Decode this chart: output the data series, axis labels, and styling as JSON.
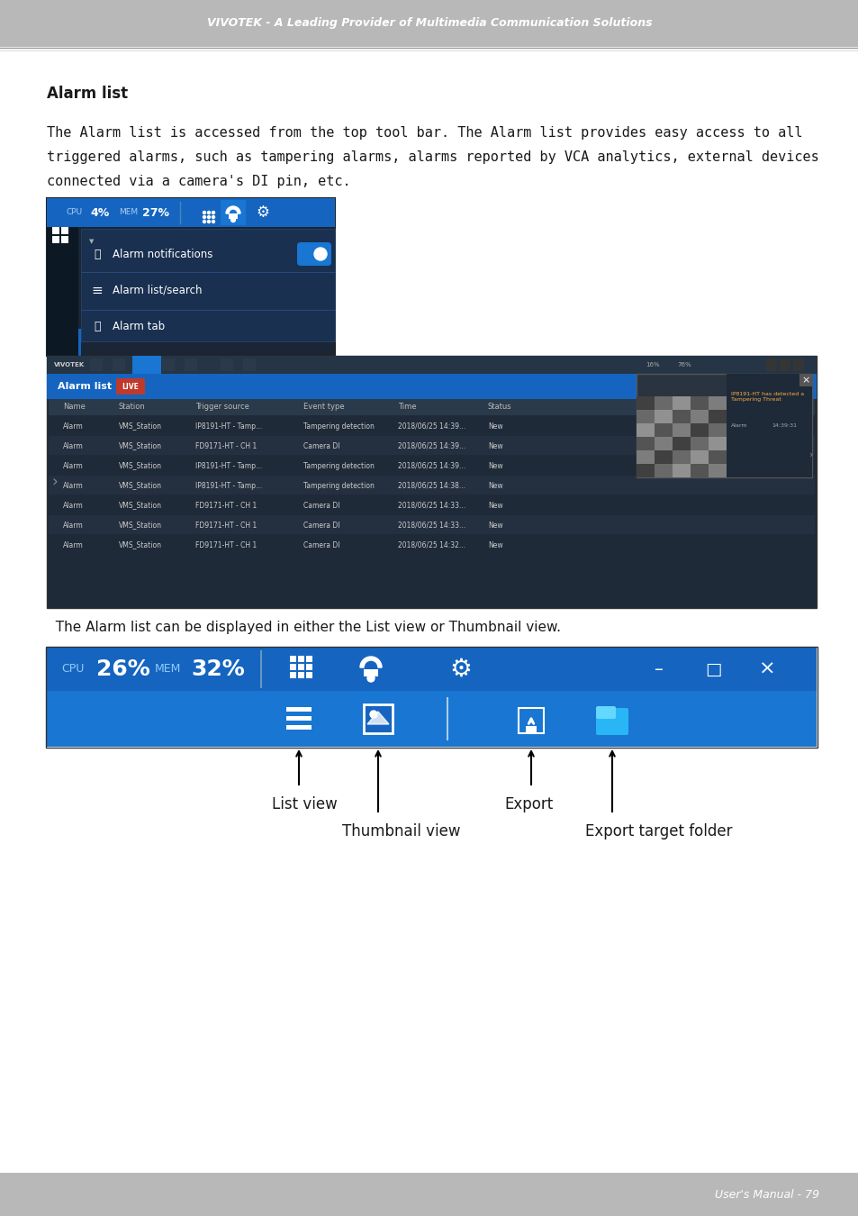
{
  "page_bg": "#ffffff",
  "header_bg": "#b8b8b8",
  "header_text": "VIVOTEK - A Leading Provider of Multimedia Communication Solutions",
  "header_text_color": "#ffffff",
  "footer_bg": "#b8b8b8",
  "footer_text": "User's Manual - 79",
  "footer_text_color": "#ffffff",
  "section_title": "Alarm list",
  "body_line1": "The Alarm list is accessed from the top tool bar. The Alarm list provides easy access to all",
  "body_line2": "triggered alarms, such as tampering alarms, alarms reported by VCA analytics, external devices",
  "body_line3": "connected via a camera's DI pin, etc.",
  "caption1": "  The Alarm list can be displayed in either the List view or Thumbnail view.",
  "label_list_view": "List view",
  "label_thumbnail_view": "Thumbnail view",
  "label_export": "Export",
  "label_export_target": "Export target folder",
  "text_dark": "#1a1a1a",
  "text_mono": "#222222"
}
